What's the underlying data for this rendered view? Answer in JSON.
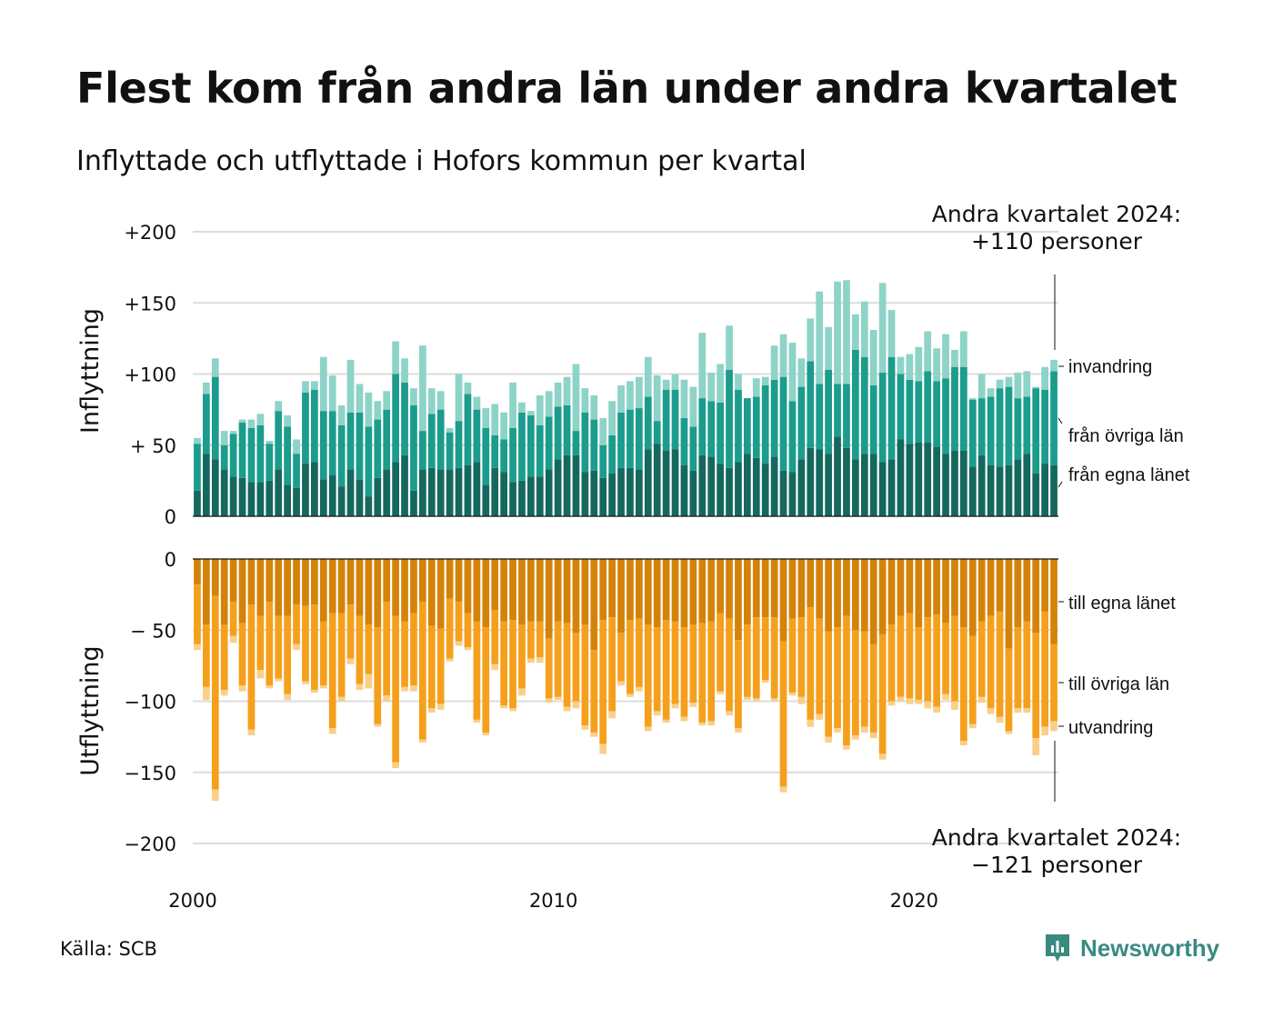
{
  "title": "Flest kom från andra län under andra kvartalet",
  "subtitle": "Inflyttade och utflyttade i Hofors kommun per kvartal",
  "source": "Källa: SCB",
  "brand": "Newsworthy",
  "colors": {
    "in_egna": "#15685e",
    "in_ovriga": "#1b9c8c",
    "in_invandring": "#8ed3c8",
    "out_egna": "#d4830a",
    "out_ovriga": "#f5a01d",
    "out_utvandring": "#f9cf8a"
  },
  "chart_data": {
    "type": "bar",
    "stacked": true,
    "x_start": "2000 Q1",
    "x_ticks": [
      "2000",
      "2010",
      "2020"
    ],
    "inflow": {
      "ylabel": "Inflyttning",
      "ylim": [
        0,
        200
      ],
      "y_ticks": [
        "0",
        "+ 50",
        "+100",
        "+150",
        "+200"
      ],
      "annotation": [
        "Andra kvartalet 2024:",
        "+110 personer"
      ],
      "series": [
        {
          "name": "från egna länet",
          "values": [
            18,
            44,
            40,
            33,
            28,
            27,
            24,
            24,
            25,
            33,
            22,
            20,
            37,
            38,
            26,
            29,
            21,
            33,
            26,
            14,
            27,
            33,
            38,
            43,
            18,
            33,
            34,
            33,
            33,
            34,
            36,
            38,
            22,
            34,
            31,
            24,
            25,
            28,
            28,
            33,
            40,
            43,
            43,
            31,
            32,
            27,
            30,
            34,
            34,
            33,
            47,
            51,
            46,
            47,
            36,
            32,
            43,
            42,
            37,
            34,
            38,
            44,
            41,
            37,
            42,
            32,
            31,
            40,
            48,
            47,
            44,
            56,
            48,
            40,
            44,
            44,
            38,
            40,
            54,
            51,
            52,
            52,
            49,
            44,
            46,
            46,
            35,
            43,
            36,
            35,
            36,
            40,
            44,
            30,
            37,
            36
          ]
        },
        {
          "name": "från övriga län",
          "values": [
            33,
            42,
            58,
            17,
            30,
            39,
            38,
            40,
            26,
            41,
            41,
            24,
            50,
            51,
            48,
            45,
            43,
            40,
            47,
            49,
            41,
            42,
            62,
            51,
            60,
            27,
            38,
            42,
            26,
            33,
            50,
            37,
            40,
            23,
            23,
            38,
            48,
            43,
            36,
            37,
            37,
            35,
            17,
            42,
            36,
            23,
            27,
            39,
            41,
            43,
            37,
            16,
            43,
            42,
            33,
            31,
            40,
            39,
            43,
            69,
            51,
            39,
            43,
            55,
            54,
            66,
            50,
            51,
            61,
            46,
            59,
            37,
            45,
            77,
            68,
            48,
            63,
            72,
            46,
            45,
            43,
            50,
            46,
            53,
            59,
            59,
            47,
            40,
            48,
            55,
            55,
            43,
            40,
            60,
            52,
            66
          ]
        },
        {
          "name": "invandring",
          "values": [
            4,
            8,
            13,
            10,
            2,
            2,
            6,
            8,
            2,
            7,
            8,
            10,
            8,
            6,
            38,
            25,
            14,
            37,
            20,
            24,
            13,
            13,
            23,
            17,
            12,
            60,
            18,
            13,
            3,
            33,
            8,
            9,
            14,
            22,
            19,
            32,
            7,
            3,
            21,
            18,
            17,
            20,
            47,
            17,
            17,
            19,
            24,
            19,
            20,
            22,
            28,
            32,
            7,
            11,
            27,
            28,
            46,
            20,
            27,
            31,
            11,
            0,
            13,
            6,
            24,
            30,
            41,
            20,
            30,
            65,
            30,
            72,
            73,
            25,
            39,
            39,
            63,
            33,
            12,
            18,
            24,
            28,
            23,
            31,
            12,
            25,
            1,
            17,
            6,
            6,
            7,
            18,
            18,
            1,
            16,
            8
          ]
        }
      ]
    },
    "outflow": {
      "ylabel": "Utflyttning",
      "ylim": [
        -200,
        0
      ],
      "y_ticks": [
        "0",
        "− 50",
        "−100",
        "−150",
        "−200"
      ],
      "annotation": [
        "Andra kvartalet 2024:",
        "−121 personer"
      ],
      "series": [
        {
          "name": "till egna länet",
          "values": [
            -18,
            -46,
            -26,
            -46,
            -30,
            -45,
            -32,
            -40,
            -30,
            -40,
            -40,
            -32,
            -33,
            -32,
            -44,
            -38,
            -38,
            -32,
            -40,
            -46,
            -48,
            -30,
            -40,
            -44,
            -38,
            -30,
            -47,
            -49,
            -28,
            -30,
            -38,
            -44,
            -48,
            -36,
            -44,
            -43,
            -46,
            -44,
            -44,
            -56,
            -44,
            -45,
            -52,
            -46,
            -64,
            -43,
            -41,
            -52,
            -43,
            -42,
            -46,
            -48,
            -43,
            -44,
            -48,
            -46,
            -45,
            -44,
            -38,
            -42,
            -57,
            -46,
            -41,
            -41,
            -41,
            -58,
            -42,
            -41,
            -34,
            -42,
            -51,
            -48,
            -40,
            -50,
            -51,
            -60,
            -53,
            -46,
            -40,
            -38,
            -48,
            -41,
            -39,
            -45,
            -40,
            -48,
            -54,
            -44,
            -40,
            -37,
            -63,
            -48,
            -44,
            -52,
            -37,
            -60
          ]
        },
        {
          "name": "till övriga län",
          "values": [
            -42,
            -44,
            -136,
            -46,
            -24,
            -44,
            -88,
            -38,
            -59,
            -44,
            -55,
            -28,
            -53,
            -60,
            -45,
            -81,
            -59,
            -38,
            -48,
            -35,
            -68,
            -66,
            -103,
            -46,
            -51,
            -97,
            -58,
            -53,
            -42,
            -28,
            -24,
            -69,
            -74,
            -38,
            -59,
            -62,
            -45,
            -26,
            -25,
            -42,
            -53,
            -59,
            -48,
            -71,
            -58,
            -87,
            -66,
            -34,
            -52,
            -48,
            -72,
            -59,
            -70,
            -58,
            -63,
            -55,
            -70,
            -70,
            -55,
            -65,
            -62,
            -51,
            -57,
            -44,
            -57,
            -102,
            -52,
            -56,
            -79,
            -67,
            -74,
            -71,
            -91,
            -74,
            -67,
            -62,
            -84,
            -54,
            -57,
            -60,
            -51,
            -59,
            -65,
            -50,
            -60,
            -80,
            -62,
            -53,
            -65,
            -74,
            -58,
            -57,
            -61,
            -74,
            -81,
            -54
          ]
        },
        {
          "name": "utvandring",
          "values": [
            -4,
            -9,
            -8,
            -4,
            -5,
            -4,
            -4,
            -6,
            -2,
            -2,
            -4,
            -4,
            -2,
            -2,
            -2,
            -4,
            -3,
            -4,
            -4,
            -10,
            -2,
            -4,
            -4,
            -3,
            -4,
            -2,
            -3,
            -4,
            -2,
            -3,
            -2,
            -2,
            -2,
            -4,
            -2,
            -2,
            -5,
            -3,
            -4,
            -3,
            -2,
            -3,
            -5,
            -3,
            -3,
            -7,
            -5,
            -3,
            -2,
            -3,
            -3,
            -3,
            -2,
            -3,
            -3,
            -3,
            -2,
            -3,
            -2,
            -3,
            -3,
            -2,
            -2,
            -2,
            -2,
            -4,
            -2,
            -5,
            -5,
            -4,
            -4,
            -3,
            -3,
            -3,
            -4,
            -4,
            -4,
            -3,
            -3,
            -4,
            -3,
            -5,
            -4,
            -4,
            -6,
            -3,
            -3,
            -4,
            -4,
            -4,
            -2,
            -3,
            -3,
            -12,
            -6,
            -7
          ]
        }
      ]
    }
  }
}
